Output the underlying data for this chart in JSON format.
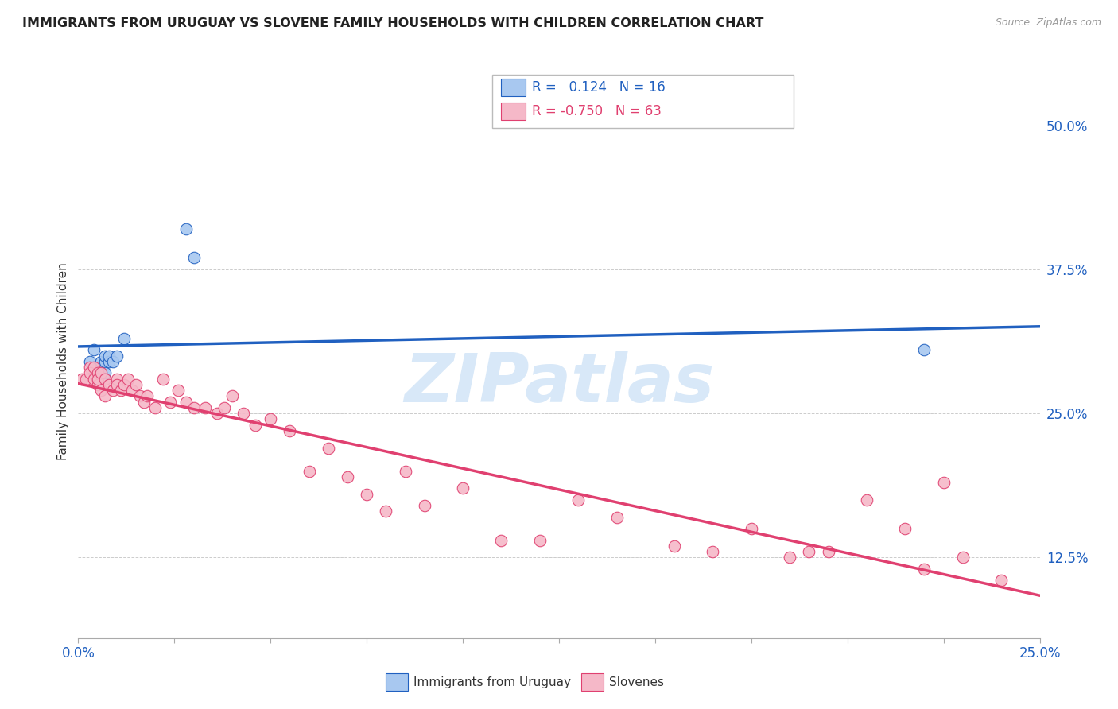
{
  "title": "IMMIGRANTS FROM URUGUAY VS SLOVENE FAMILY HOUSEHOLDS WITH CHILDREN CORRELATION CHART",
  "source": "Source: ZipAtlas.com",
  "ylabel": "Family Households with Children",
  "legend_label1": "Immigrants from Uruguay",
  "legend_label2": "Slovenes",
  "R1": "0.124",
  "N1": "16",
  "R2": "-0.750",
  "N2": "63",
  "color1": "#A8C8F0",
  "color2": "#F5B8C8",
  "line_color1": "#2060C0",
  "line_color2": "#E04070",
  "xmin": 0.0,
  "xmax": 0.25,
  "ymin": 0.055,
  "ymax": 0.535,
  "yticks": [
    0.125,
    0.25,
    0.375,
    0.5
  ],
  "ytick_labels": [
    "12.5%",
    "25.0%",
    "37.5%",
    "50.0%"
  ],
  "xticks": [
    0.0,
    0.025,
    0.05,
    0.075,
    0.1,
    0.125,
    0.15,
    0.175,
    0.2,
    0.225,
    0.25
  ],
  "background_color": "#ffffff",
  "grid_color": "#cccccc",
  "scatter1_x": [
    0.003,
    0.004,
    0.005,
    0.006,
    0.006,
    0.007,
    0.007,
    0.007,
    0.008,
    0.008,
    0.009,
    0.01,
    0.012,
    0.028,
    0.03,
    0.22
  ],
  "scatter1_y": [
    0.295,
    0.305,
    0.29,
    0.295,
    0.285,
    0.295,
    0.3,
    0.285,
    0.295,
    0.3,
    0.295,
    0.3,
    0.315,
    0.41,
    0.385,
    0.305
  ],
  "scatter2_x": [
    0.001,
    0.002,
    0.003,
    0.003,
    0.004,
    0.004,
    0.005,
    0.005,
    0.005,
    0.006,
    0.006,
    0.007,
    0.007,
    0.008,
    0.009,
    0.01,
    0.01,
    0.011,
    0.012,
    0.013,
    0.014,
    0.015,
    0.016,
    0.017,
    0.018,
    0.02,
    0.022,
    0.024,
    0.026,
    0.028,
    0.03,
    0.033,
    0.036,
    0.038,
    0.04,
    0.043,
    0.046,
    0.05,
    0.055,
    0.06,
    0.065,
    0.07,
    0.075,
    0.08,
    0.085,
    0.09,
    0.1,
    0.11,
    0.12,
    0.13,
    0.14,
    0.155,
    0.165,
    0.175,
    0.185,
    0.19,
    0.195,
    0.205,
    0.215,
    0.22,
    0.225,
    0.23,
    0.24
  ],
  "scatter2_y": [
    0.28,
    0.28,
    0.29,
    0.285,
    0.28,
    0.29,
    0.275,
    0.285,
    0.28,
    0.27,
    0.285,
    0.28,
    0.265,
    0.275,
    0.27,
    0.28,
    0.275,
    0.27,
    0.275,
    0.28,
    0.27,
    0.275,
    0.265,
    0.26,
    0.265,
    0.255,
    0.28,
    0.26,
    0.27,
    0.26,
    0.255,
    0.255,
    0.25,
    0.255,
    0.265,
    0.25,
    0.24,
    0.245,
    0.235,
    0.2,
    0.22,
    0.195,
    0.18,
    0.165,
    0.2,
    0.17,
    0.185,
    0.14,
    0.14,
    0.175,
    0.16,
    0.135,
    0.13,
    0.15,
    0.125,
    0.13,
    0.13,
    0.175,
    0.15,
    0.115,
    0.19,
    0.125,
    0.105
  ],
  "watermark": "ZIPatlas",
  "watermark_color": "#d8e8f8"
}
